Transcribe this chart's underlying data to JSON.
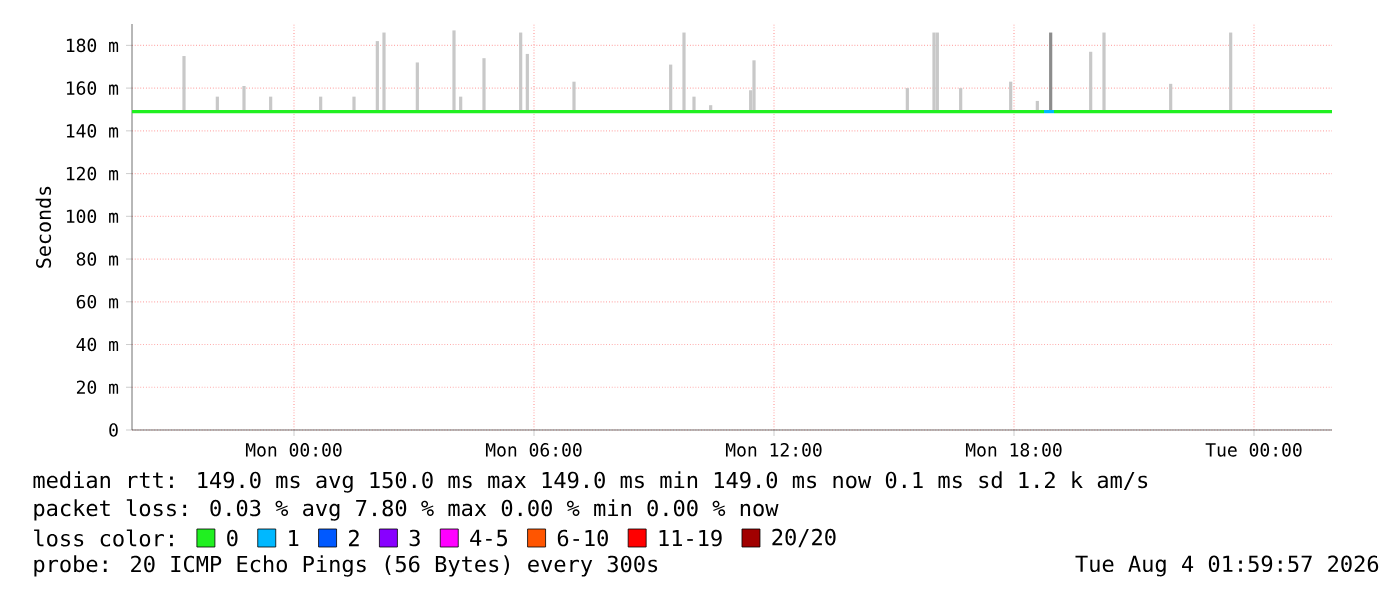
{
  "chart_data": {
    "type": "line",
    "ylabel": "Seconds",
    "legend_title": "loss color:",
    "legend": "bottom",
    "grid": true,
    "xlim": [
      "2026-08-02T19:57",
      "2026-08-04T01:57"
    ],
    "xticks": [
      {
        "value": "2026-08-03T00:00",
        "label": "Mon 00:00"
      },
      {
        "value": "2026-08-03T06:00",
        "label": "Mon 06:00"
      },
      {
        "value": "2026-08-03T12:00",
        "label": "Mon 12:00"
      },
      {
        "value": "2026-08-03T18:00",
        "label": "Mon 18:00"
      },
      {
        "value": "2026-08-04T00:00",
        "label": "Tue 00:00"
      }
    ],
    "ylim": [
      0,
      190
    ],
    "yticks": [
      0,
      {
        "value": 20,
        "label": "20 m"
      },
      {
        "value": 40,
        "label": "40 m"
      },
      {
        "value": 60,
        "label": "60 m"
      },
      {
        "value": 80,
        "label": "80 m"
      },
      {
        "value": 100,
        "label": "100 m"
      },
      {
        "value": 120,
        "label": "120 m"
      },
      {
        "value": 140,
        "label": "140 m"
      },
      {
        "value": 160,
        "label": "160 m"
      },
      {
        "value": 180,
        "label": "180 m"
      }
    ],
    "annotations": [
      "median rtt:  149.0 ms avg  150.0 ms max  149.0 ms min  149.0 ms now  0.1 ms sd  1.2 k am/s",
      "packet loss: 0.03 % avg  7.80 % max  0.00 % min  0.00 % now",
      "probe:       20 ICMP Echo Pings (56 Bytes) every 300s",
      "Tue Aug  4 01:59:57 2026"
    ],
    "series": [
      {
        "type": "bar",
        "color": "#c8c8c8",
        "colors": [
          "#c8c8c8",
          "#c8c8c8",
          "#c8c8c8",
          "#c8c8c8",
          "#c8c8c8",
          "#c8c8c8",
          "#c8c8c8",
          "#c8c8c8",
          "#c8c8c8",
          "#c8c8c8",
          "#c8c8c8",
          "#c8c8c8",
          "#c8c8c8",
          "#c8c8c8",
          "#c8c8c8",
          "#c8c8c8",
          "#c8c8c8",
          "#c8c8c8",
          "#c8c8c8",
          "#c8c8c8",
          "#c8c8c8",
          "#c8c8c8",
          "#c8c8c8",
          "#c8c8c8",
          "#c8c8c8",
          "#c8c8c8",
          "#c8c8c8",
          "#8c8c8c",
          "#c8c8c8",
          "#c8c8c8",
          "#c8c8c8",
          "#c8c8c8"
        ],
        "x": [
          "2026-08-02T21:15",
          "2026-08-02T22:05",
          "2026-08-02T22:45",
          "2026-08-02T23:25",
          "2026-08-03T00:40",
          "2026-08-03T01:30",
          "2026-08-03T02:05",
          "2026-08-03T02:15",
          "2026-08-03T03:05",
          "2026-08-03T04:00",
          "2026-08-03T04:10",
          "2026-08-03T04:45",
          "2026-08-03T05:40",
          "2026-08-03T05:50",
          "2026-08-03T07:00",
          "2026-08-03T09:25",
          "2026-08-03T09:45",
          "2026-08-03T10:00",
          "2026-08-03T10:25",
          "2026-08-03T11:25",
          "2026-08-03T11:30",
          "2026-08-03T15:20",
          "2026-08-03T16:00",
          "2026-08-03T16:05",
          "2026-08-03T16:40",
          "2026-08-03T17:55",
          "2026-08-03T18:35",
          "2026-08-03T18:55",
          "2026-08-03T19:55",
          "2026-08-03T20:15",
          "2026-08-03T21:55",
          "2026-08-03T23:25"
        ],
        "base": [
          149,
          149,
          149,
          149,
          149,
          149,
          149,
          149,
          149,
          149,
          149,
          149,
          149,
          149,
          149,
          149,
          149,
          149,
          149,
          149,
          149,
          149,
          149,
          149,
          149,
          149,
          149,
          149,
          149,
          149,
          149,
          149
        ],
        "values": [
          26,
          7,
          12,
          7,
          7,
          7,
          33,
          37,
          23,
          38,
          7,
          25,
          37,
          27,
          14,
          22,
          37,
          7,
          3,
          10,
          24,
          11,
          37,
          37,
          11,
          14,
          5,
          37,
          28,
          37,
          13,
          37
        ]
      },
      {
        "name": "0",
        "color": "#20f020",
        "x": [
          "2026-08-02T19:57",
          "2026-08-03T18:45",
          "2026-08-03T18:50",
          "2026-08-03T19:00",
          "2026-08-04T01:57"
        ],
        "values": [
          149,
          149,
          null,
          149,
          149
        ]
      },
      {
        "name": "1",
        "color": "#00b8ff",
        "x": [
          "2026-08-03T18:45",
          "2026-08-03T19:00"
        ],
        "values": [
          149,
          149
        ]
      },
      {
        "name": "2",
        "color": "#0059ff"
      },
      {
        "name": "3",
        "color": "#8800ff"
      },
      {
        "name": "4-5",
        "color": "#ff00ff"
      },
      {
        "name": "6-10",
        "color": "#ff5500"
      },
      {
        "name": "11-19",
        "color": "#ff0000"
      },
      {
        "name": "20/20",
        "color": "#a10000"
      }
    ]
  }
}
